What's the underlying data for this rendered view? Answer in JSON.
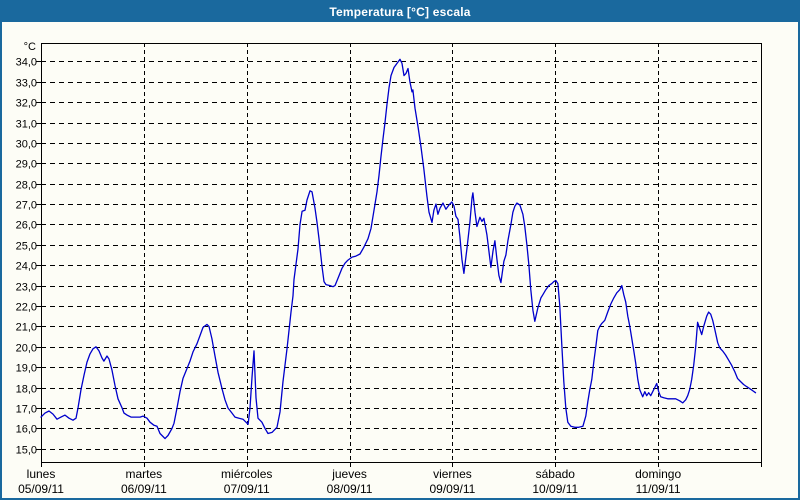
{
  "window": {
    "title": "Temperatura [°C] escala"
  },
  "colors": {
    "frame_blue": "#1a699e",
    "background": "#fdfdf6",
    "line_blue": "#0000cc",
    "grid_black": "#000000",
    "title_text": "#ffffff"
  },
  "chart_data": {
    "type": "line",
    "title": "Temperatura [°C] escala",
    "y_unit_label": "°C",
    "ylabel": "Temperatura",
    "xlabel": "",
    "grid": true,
    "legend": "none",
    "ylim": [
      14.35,
      34.9
    ],
    "y_ticks": [
      {
        "v": 34,
        "label": "34,0"
      },
      {
        "v": 33,
        "label": "33,0"
      },
      {
        "v": 32,
        "label": "32,0"
      },
      {
        "v": 31,
        "label": "31,0"
      },
      {
        "v": 30,
        "label": "30,0"
      },
      {
        "v": 29,
        "label": "29,0"
      },
      {
        "v": 28,
        "label": "28,0"
      },
      {
        "v": 27,
        "label": "27,0"
      },
      {
        "v": 26,
        "label": "26,0"
      },
      {
        "v": 25,
        "label": "25,0"
      },
      {
        "v": 24,
        "label": "24,0"
      },
      {
        "v": 23,
        "label": "23,0"
      },
      {
        "v": 22,
        "label": "22,0"
      },
      {
        "v": 21,
        "label": "21,0"
      },
      {
        "v": 20,
        "label": "20,0"
      },
      {
        "v": 19,
        "label": "19,0"
      },
      {
        "v": 18,
        "label": "18,0"
      },
      {
        "v": 17,
        "label": "17,0"
      },
      {
        "v": 16,
        "label": "16,0"
      },
      {
        "v": 15,
        "label": "15,0"
      }
    ],
    "x_days": [
      {
        "name": "lunes",
        "date": "05/09/11"
      },
      {
        "name": "martes",
        "date": "06/09/11"
      },
      {
        "name": "miércoles",
        "date": "07/09/11"
      },
      {
        "name": "jueves",
        "date": "08/09/11"
      },
      {
        "name": "viernes",
        "date": "09/09/11"
      },
      {
        "name": "sábado",
        "date": "10/09/11"
      },
      {
        "name": "domingo",
        "date": "11/09/11"
      }
    ],
    "x_range_days": [
      0,
      7
    ],
    "series": [
      {
        "name": "Temperatura",
        "color": "#0000cc",
        "points": [
          [
            0,
            16.55
          ],
          [
            0.039,
            16.75
          ],
          [
            0.078,
            16.85
          ],
          [
            0.117,
            16.7
          ],
          [
            0.156,
            16.45
          ],
          [
            0.194,
            16.55
          ],
          [
            0.233,
            16.65
          ],
          [
            0.272,
            16.5
          ],
          [
            0.311,
            16.4
          ],
          [
            0.34,
            16.5
          ],
          [
            0.36,
            17.0
          ],
          [
            0.389,
            17.9
          ],
          [
            0.418,
            18.6
          ],
          [
            0.447,
            19.25
          ],
          [
            0.476,
            19.65
          ],
          [
            0.506,
            19.9
          ],
          [
            0.535,
            20.0
          ],
          [
            0.564,
            19.8
          ],
          [
            0.593,
            19.45
          ],
          [
            0.612,
            19.3
          ],
          [
            0.642,
            19.55
          ],
          [
            0.661,
            19.4
          ],
          [
            0.69,
            18.85
          ],
          [
            0.719,
            18.1
          ],
          [
            0.749,
            17.45
          ],
          [
            0.788,
            17.0
          ],
          [
            0.807,
            16.75
          ],
          [
            0.836,
            16.65
          ],
          [
            0.875,
            16.55
          ],
          [
            0.924,
            16.55
          ],
          [
            0.963,
            16.55
          ],
          [
            0.992,
            16.6
          ],
          [
            1.031,
            16.5
          ],
          [
            1.06,
            16.3
          ],
          [
            1.099,
            16.15
          ],
          [
            1.128,
            16.1
          ],
          [
            1.157,
            15.75
          ],
          [
            1.186,
            15.6
          ],
          [
            1.206,
            15.5
          ],
          [
            1.235,
            15.65
          ],
          [
            1.274,
            16.0
          ],
          [
            1.293,
            16.25
          ],
          [
            1.322,
            17.0
          ],
          [
            1.351,
            17.8
          ],
          [
            1.381,
            18.45
          ],
          [
            1.42,
            18.95
          ],
          [
            1.449,
            19.3
          ],
          [
            1.478,
            19.75
          ],
          [
            1.517,
            20.15
          ],
          [
            1.546,
            20.55
          ],
          [
            1.575,
            20.95
          ],
          [
            1.614,
            21.1
          ],
          [
            1.633,
            21.0
          ],
          [
            1.662,
            20.4
          ],
          [
            1.692,
            19.55
          ],
          [
            1.721,
            18.75
          ],
          [
            1.76,
            17.95
          ],
          [
            1.789,
            17.4
          ],
          [
            1.818,
            17.0
          ],
          [
            1.857,
            16.75
          ],
          [
            1.886,
            16.55
          ],
          [
            1.925,
            16.5
          ],
          [
            1.964,
            16.45
          ],
          [
            1.993,
            16.3
          ],
          [
            2.013,
            16.2
          ],
          [
            2.032,
            17.0
          ],
          [
            2.051,
            18.5
          ],
          [
            2.071,
            19.8
          ],
          [
            2.09,
            17.5
          ],
          [
            2.11,
            16.5
          ],
          [
            2.148,
            16.3
          ],
          [
            2.178,
            16.0
          ],
          [
            2.207,
            15.75
          ],
          [
            2.246,
            15.8
          ],
          [
            2.294,
            16.05
          ],
          [
            2.324,
            16.8
          ],
          [
            2.353,
            18.3
          ],
          [
            2.392,
            19.9
          ],
          [
            2.411,
            20.8
          ],
          [
            2.431,
            21.7
          ],
          [
            2.45,
            22.5
          ],
          [
            2.46,
            23.3
          ],
          [
            2.479,
            24.05
          ],
          [
            2.499,
            24.8
          ],
          [
            2.518,
            26.0
          ],
          [
            2.538,
            26.65
          ],
          [
            2.567,
            26.7
          ],
          [
            2.586,
            27.2
          ],
          [
            2.615,
            27.65
          ],
          [
            2.635,
            27.6
          ],
          [
            2.664,
            26.8
          ],
          [
            2.683,
            26.1
          ],
          [
            2.703,
            25.3
          ],
          [
            2.722,
            24.4
          ],
          [
            2.732,
            23.95
          ],
          [
            2.751,
            23.2
          ],
          [
            2.771,
            23.05
          ],
          [
            2.81,
            23.0
          ],
          [
            2.839,
            22.95
          ],
          [
            2.858,
            23.0
          ],
          [
            2.887,
            23.35
          ],
          [
            2.926,
            23.85
          ],
          [
            2.956,
            24.1
          ],
          [
            2.985,
            24.25
          ],
          [
            3.024,
            24.4
          ],
          [
            3.062,
            24.45
          ],
          [
            3.101,
            24.55
          ],
          [
            3.14,
            24.9
          ],
          [
            3.179,
            25.3
          ],
          [
            3.208,
            25.8
          ],
          [
            3.228,
            26.4
          ],
          [
            3.247,
            27.0
          ],
          [
            3.267,
            27.6
          ],
          [
            3.286,
            28.4
          ],
          [
            3.305,
            29.3
          ],
          [
            3.325,
            30.2
          ],
          [
            3.344,
            31.0
          ],
          [
            3.364,
            31.9
          ],
          [
            3.383,
            32.7
          ],
          [
            3.403,
            33.3
          ],
          [
            3.432,
            33.7
          ],
          [
            3.461,
            33.9
          ],
          [
            3.49,
            34.1
          ],
          [
            3.51,
            33.9
          ],
          [
            3.529,
            33.3
          ],
          [
            3.548,
            33.4
          ],
          [
            3.568,
            33.65
          ],
          [
            3.587,
            33.0
          ],
          [
            3.607,
            32.5
          ],
          [
            3.616,
            32.6
          ],
          [
            3.636,
            31.7
          ],
          [
            3.665,
            30.8
          ],
          [
            3.694,
            29.8
          ],
          [
            3.723,
            28.7
          ],
          [
            3.752,
            27.4
          ],
          [
            3.772,
            26.6
          ],
          [
            3.801,
            26.1
          ],
          [
            3.82,
            26.7
          ],
          [
            3.84,
            27.0
          ],
          [
            3.859,
            26.5
          ],
          [
            3.879,
            26.8
          ],
          [
            3.908,
            27.05
          ],
          [
            3.937,
            26.75
          ],
          [
            3.966,
            26.95
          ],
          [
            3.995,
            27.1
          ],
          [
            4.015,
            26.9
          ],
          [
            4.034,
            26.4
          ],
          [
            4.054,
            26.25
          ],
          [
            4.073,
            25.4
          ],
          [
            4.092,
            24.3
          ],
          [
            4.112,
            23.6
          ],
          [
            4.141,
            24.8
          ],
          [
            4.17,
            26.1
          ],
          [
            4.19,
            27.3
          ],
          [
            4.199,
            27.55
          ],
          [
            4.219,
            26.6
          ],
          [
            4.238,
            25.9
          ],
          [
            4.267,
            26.35
          ],
          [
            4.287,
            26.15
          ],
          [
            4.306,
            26.3
          ],
          [
            4.335,
            25.5
          ],
          [
            4.355,
            24.7
          ],
          [
            4.374,
            23.9
          ],
          [
            4.394,
            24.7
          ],
          [
            4.413,
            25.2
          ],
          [
            4.432,
            24.3
          ],
          [
            4.452,
            23.5
          ],
          [
            4.471,
            23.15
          ],
          [
            4.5,
            24.2
          ],
          [
            4.52,
            24.5
          ],
          [
            4.539,
            25.2
          ],
          [
            4.568,
            26.0
          ],
          [
            4.588,
            26.6
          ],
          [
            4.607,
            26.9
          ],
          [
            4.627,
            27.05
          ],
          [
            4.656,
            26.95
          ],
          [
            4.685,
            26.5
          ],
          [
            4.704,
            25.9
          ],
          [
            4.724,
            25.0
          ],
          [
            4.743,
            24.0
          ],
          [
            4.762,
            22.8
          ],
          [
            4.782,
            21.8
          ],
          [
            4.801,
            21.25
          ],
          [
            4.83,
            21.9
          ],
          [
            4.86,
            22.4
          ],
          [
            4.879,
            22.55
          ],
          [
            4.908,
            22.8
          ],
          [
            4.937,
            23.0
          ],
          [
            4.966,
            23.1
          ],
          [
            4.986,
            23.2
          ],
          [
            5.005,
            23.25
          ],
          [
            5.025,
            23.1
          ],
          [
            5.044,
            22.0
          ],
          [
            5.064,
            20.0
          ],
          [
            5.083,
            18.3
          ],
          [
            5.102,
            17.0
          ],
          [
            5.122,
            16.3
          ],
          [
            5.151,
            16.1
          ],
          [
            5.19,
            16.05
          ],
          [
            5.229,
            16.05
          ],
          [
            5.268,
            16.1
          ],
          [
            5.297,
            16.6
          ],
          [
            5.316,
            17.3
          ],
          [
            5.336,
            17.9
          ],
          [
            5.355,
            18.4
          ],
          [
            5.375,
            19.3
          ],
          [
            5.394,
            20.0
          ],
          [
            5.413,
            20.8
          ],
          [
            5.433,
            21.0
          ],
          [
            5.452,
            21.15
          ],
          [
            5.481,
            21.3
          ],
          [
            5.51,
            21.7
          ],
          [
            5.54,
            22.1
          ],
          [
            5.569,
            22.4
          ],
          [
            5.598,
            22.65
          ],
          [
            5.627,
            22.8
          ],
          [
            5.647,
            23.0
          ],
          [
            5.666,
            22.55
          ],
          [
            5.685,
            22.2
          ],
          [
            5.705,
            21.5
          ],
          [
            5.724,
            21.0
          ],
          [
            5.744,
            20.4
          ],
          [
            5.763,
            19.8
          ],
          [
            5.782,
            19.2
          ],
          [
            5.802,
            18.4
          ],
          [
            5.821,
            17.9
          ],
          [
            5.85,
            17.55
          ],
          [
            5.87,
            17.8
          ],
          [
            5.889,
            17.6
          ],
          [
            5.908,
            17.75
          ],
          [
            5.928,
            17.6
          ],
          [
            5.947,
            17.8
          ],
          [
            5.967,
            18.0
          ],
          [
            5.986,
            18.2
          ],
          [
            6.005,
            17.8
          ],
          [
            6.025,
            17.55
          ],
          [
            6.054,
            17.5
          ],
          [
            6.093,
            17.45
          ],
          [
            6.132,
            17.45
          ],
          [
            6.171,
            17.45
          ],
          [
            6.21,
            17.35
          ],
          [
            6.239,
            17.25
          ],
          [
            6.268,
            17.4
          ],
          [
            6.287,
            17.6
          ],
          [
            6.307,
            17.9
          ],
          [
            6.326,
            18.4
          ],
          [
            6.346,
            19.1
          ],
          [
            6.365,
            20.0
          ],
          [
            6.384,
            21.2
          ],
          [
            6.404,
            20.9
          ],
          [
            6.423,
            20.6
          ],
          [
            6.443,
            21.0
          ],
          [
            6.472,
            21.5
          ],
          [
            6.491,
            21.7
          ],
          [
            6.511,
            21.6
          ],
          [
            6.53,
            21.3
          ],
          [
            6.549,
            20.9
          ],
          [
            6.579,
            20.2
          ],
          [
            6.598,
            19.95
          ],
          [
            6.627,
            19.8
          ],
          [
            6.656,
            19.6
          ],
          [
            6.685,
            19.35
          ],
          [
            6.714,
            19.1
          ],
          [
            6.743,
            18.8
          ],
          [
            6.772,
            18.45
          ],
          [
            6.801,
            18.3
          ],
          [
            6.831,
            18.15
          ],
          [
            6.86,
            18.05
          ],
          [
            6.889,
            17.95
          ],
          [
            6.918,
            17.85
          ],
          [
            6.947,
            17.75
          ]
        ]
      }
    ]
  }
}
